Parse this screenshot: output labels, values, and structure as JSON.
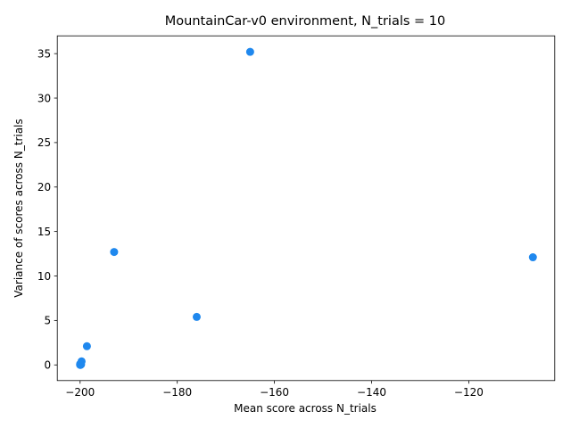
{
  "chart_data": {
    "type": "scatter",
    "title": "MountainCar-v0 environment, N_trials = 10",
    "xlabel": "Mean score across N_trials",
    "ylabel": "Variance of scores across N_trials",
    "xlim": [
      -204.7,
      -102.3
    ],
    "ylim": [
      -1.76,
      37.0
    ],
    "xticks": [
      -200,
      -180,
      -160,
      -140,
      -120
    ],
    "xtick_labels": [
      "−200",
      "−180",
      "−160",
      "−140",
      "−120"
    ],
    "yticks": [
      0,
      5,
      10,
      15,
      20,
      25,
      30,
      35
    ],
    "ytick_labels": [
      "0",
      "5",
      "10",
      "15",
      "20",
      "25",
      "30",
      "35"
    ],
    "grid": false,
    "marker_color": "#1f88ee",
    "points": [
      {
        "x": -165.0,
        "y": 35.2
      },
      {
        "x": -193.0,
        "y": 12.7
      },
      {
        "x": -106.8,
        "y": 12.1
      },
      {
        "x": -176.0,
        "y": 5.4
      },
      {
        "x": -198.6,
        "y": 2.1
      },
      {
        "x": -199.7,
        "y": 0.4
      },
      {
        "x": -200.0,
        "y": 0.0
      },
      {
        "x": -199.9,
        "y": 0.0
      },
      {
        "x": -199.8,
        "y": 0.05
      },
      {
        "x": -200.0,
        "y": 0.1
      }
    ]
  }
}
